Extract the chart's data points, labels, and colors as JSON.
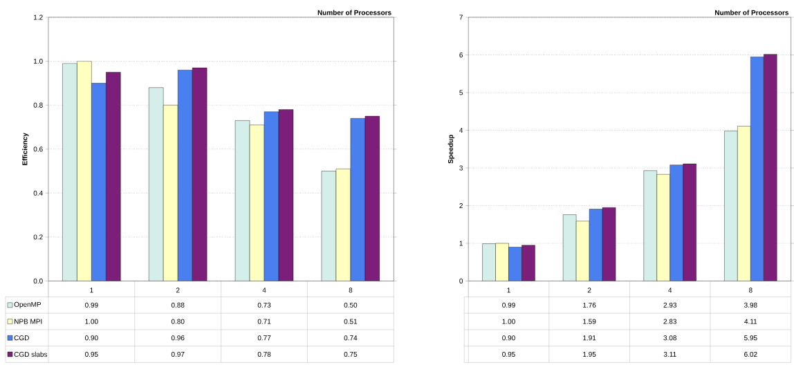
{
  "chart_data": [
    {
      "type": "bar",
      "xlabel": "Number of Processors",
      "ylabel": "Efficiency",
      "categories": [
        "1",
        "2",
        "4",
        "8"
      ],
      "ylim": [
        0,
        1.2
      ],
      "yticks": [
        {
          "value": 0,
          "label": "0.0"
        },
        {
          "value": 0.2,
          "label": "0.2"
        },
        {
          "value": 0.4,
          "label": "0.4"
        },
        {
          "value": 0.6,
          "label": "0.6"
        },
        {
          "value": 0.8,
          "label": "0.8"
        },
        {
          "value": 1.0,
          "label": "1.0"
        },
        {
          "value": 1.2,
          "label": "1.2"
        }
      ],
      "grid": "y",
      "legend": "bottom",
      "series": [
        {
          "name": "OpenMP",
          "color": "#d4efea",
          "values": [
            0.99,
            0.88,
            0.73,
            0.5
          ],
          "value_labels": [
            "0.99",
            "0.88",
            "0.73",
            "0.50"
          ]
        },
        {
          "name": "NPB MPI",
          "color": "#ffffc0",
          "values": [
            1.0,
            0.8,
            0.71,
            0.51
          ],
          "value_labels": [
            "1.00",
            "0.80",
            "0.71",
            "0.51"
          ]
        },
        {
          "name": "CGD",
          "color": "#4a7ff0",
          "values": [
            0.9,
            0.96,
            0.77,
            0.74
          ],
          "value_labels": [
            "0.90",
            "0.96",
            "0.77",
            "0.74"
          ]
        },
        {
          "name": "CGD slabs",
          "color": "#7b1f7b",
          "values": [
            0.95,
            0.97,
            0.78,
            0.75
          ],
          "value_labels": [
            "0.95",
            "0.97",
            "0.78",
            "0.75"
          ]
        }
      ]
    },
    {
      "type": "bar",
      "xlabel": "Number of Processors",
      "ylabel": "Speedup",
      "categories": [
        "1",
        "2",
        "4",
        "8"
      ],
      "ylim": [
        0,
        7
      ],
      "yticks": [
        0,
        1,
        2,
        3,
        4,
        5,
        6,
        7
      ],
      "grid": "y",
      "series": [
        {
          "color": "#d4efea",
          "values": [
            0.99,
            1.76,
            2.93,
            3.98
          ],
          "value_labels": [
            "0.99",
            "1.76",
            "2.93",
            "3.98"
          ]
        },
        {
          "color": "#ffffc0",
          "values": [
            1.0,
            1.59,
            2.83,
            4.11
          ],
          "value_labels": [
            "1.00",
            "1.59",
            "2.83",
            "4.11"
          ]
        },
        {
          "color": "#4a7ff0",
          "values": [
            0.9,
            1.91,
            3.08,
            5.95
          ],
          "value_labels": [
            "0.90",
            "1.91",
            "3.08",
            "5.95"
          ]
        },
        {
          "color": "#7b1f7b",
          "values": [
            0.95,
            1.95,
            3.11,
            6.02
          ],
          "value_labels": [
            "0.95",
            "1.95",
            "3.11",
            "6.02"
          ]
        }
      ]
    }
  ]
}
